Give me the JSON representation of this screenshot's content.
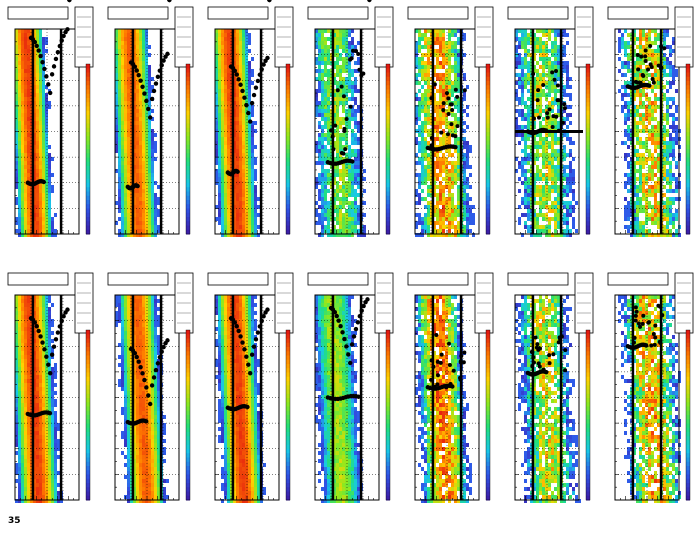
{
  "figure": {
    "caption": "35",
    "layout": {
      "rows": 2,
      "columns": 7
    },
    "colormap": [
      "#3b1fa8",
      "#2f55e8",
      "#18c8e8",
      "#22e07a",
      "#8fe81e",
      "#ffd200",
      "#ff7a00",
      "#e31a10"
    ]
  },
  "chart_data": [
    {
      "type": "heatmap",
      "panel": "row1-col1",
      "band_position": 0.25,
      "band_width": 0.28,
      "band_intensity": 0.95,
      "band_noise": 0.05,
      "overlay": {
        "upper_arc": true,
        "bottom_y": 0.25,
        "bottom_x": 0.46,
        "top_y": 0.82,
        "horizontal_bar": false
      }
    },
    {
      "type": "heatmap",
      "panel": "row1-col2",
      "band_position": 0.3,
      "band_width": 0.3,
      "band_intensity": 0.9,
      "band_noise": 0.05,
      "overlay": {
        "upper_arc": true,
        "bottom_y": 0.23,
        "bottom_x": 0.36,
        "top_y": 0.7,
        "horizontal_bar": false
      }
    },
    {
      "type": "heatmap",
      "panel": "row1-col3",
      "band_position": 0.3,
      "band_width": 0.3,
      "band_intensity": 0.95,
      "band_noise": 0.05,
      "overlay": {
        "upper_arc": true,
        "bottom_y": 0.3,
        "bottom_x": 0.36,
        "top_y": 0.68,
        "horizontal_bar": false
      }
    },
    {
      "type": "heatmap",
      "panel": "row1-col4",
      "band_position": 0.35,
      "band_width": 0.35,
      "band_intensity": 0.55,
      "band_noise": 0.3,
      "overlay": {
        "upper_arc": false,
        "bottom_y": 0.35,
        "bottom_x": 0.6,
        "top_y": 0.9,
        "horizontal_bar": false
      }
    },
    {
      "type": "heatmap",
      "panel": "row1-col5",
      "band_position": 0.4,
      "band_width": 0.4,
      "band_intensity": 0.8,
      "band_noise": 0.35,
      "overlay": {
        "upper_arc": false,
        "bottom_y": 0.42,
        "bottom_x": 0.65,
        "top_y": 0.75,
        "horizontal_bar": false
      }
    },
    {
      "type": "heatmap",
      "panel": "row1-col6",
      "band_position": 0.45,
      "band_width": 0.4,
      "band_intensity": 0.6,
      "band_noise": 0.4,
      "overlay": {
        "upper_arc": false,
        "bottom_y": 0.5,
        "bottom_x": 0.5,
        "top_y": 0.8,
        "horizontal_bar": true
      }
    },
    {
      "type": "heatmap",
      "panel": "row1-col7",
      "band_position": 0.55,
      "band_width": 0.4,
      "band_intensity": 0.7,
      "band_noise": 0.45,
      "overlay": {
        "upper_arc": false,
        "bottom_y": 0.72,
        "bottom_x": 0.55,
        "top_y": 0.92,
        "horizontal_bar": false
      }
    },
    {
      "type": "heatmap",
      "panel": "row2-col1",
      "band_position": 0.3,
      "band_width": 0.32,
      "band_intensity": 0.95,
      "band_noise": 0.05,
      "overlay": {
        "upper_arc": true,
        "bottom_y": 0.42,
        "bottom_x": 0.56,
        "top_y": 0.75,
        "horizontal_bar": false
      }
    },
    {
      "type": "heatmap",
      "panel": "row2-col2",
      "band_position": 0.42,
      "band_width": 0.3,
      "band_intensity": 0.9,
      "band_noise": 0.05,
      "overlay": {
        "upper_arc": true,
        "bottom_y": 0.38,
        "bottom_x": 0.5,
        "top_y": 0.6,
        "horizontal_bar": false
      }
    },
    {
      "type": "heatmap",
      "panel": "row2-col3",
      "band_position": 0.38,
      "band_width": 0.3,
      "band_intensity": 0.95,
      "band_noise": 0.05,
      "overlay": {
        "upper_arc": true,
        "bottom_y": 0.45,
        "bottom_x": 0.52,
        "top_y": 0.75,
        "horizontal_bar": false
      }
    },
    {
      "type": "heatmap",
      "panel": "row2-col4",
      "band_position": 0.35,
      "band_width": 0.3,
      "band_intensity": 0.6,
      "band_noise": 0.15,
      "overlay": {
        "upper_arc": true,
        "bottom_y": 0.5,
        "bottom_x": 0.7,
        "top_y": 0.8,
        "horizontal_bar": false
      }
    },
    {
      "type": "heatmap",
      "panel": "row2-col5",
      "band_position": 0.42,
      "band_width": 0.35,
      "band_intensity": 0.85,
      "band_noise": 0.3,
      "overlay": {
        "upper_arc": false,
        "bottom_y": 0.55,
        "bottom_x": 0.6,
        "top_y": 0.82,
        "horizontal_bar": false
      }
    },
    {
      "type": "heatmap",
      "panel": "row2-col6",
      "band_position": 0.5,
      "band_width": 0.38,
      "band_intensity": 0.65,
      "band_noise": 0.4,
      "overlay": {
        "upper_arc": false,
        "bottom_y": 0.62,
        "bottom_x": 0.5,
        "top_y": 0.8,
        "horizontal_bar": false
      }
    },
    {
      "type": "heatmap",
      "panel": "row2-col7",
      "band_position": 0.58,
      "band_width": 0.4,
      "band_intensity": 0.75,
      "band_noise": 0.45,
      "overlay": {
        "upper_arc": false,
        "bottom_y": 0.75,
        "bottom_x": 0.5,
        "top_y": 0.95,
        "horizontal_bar": false
      }
    }
  ]
}
